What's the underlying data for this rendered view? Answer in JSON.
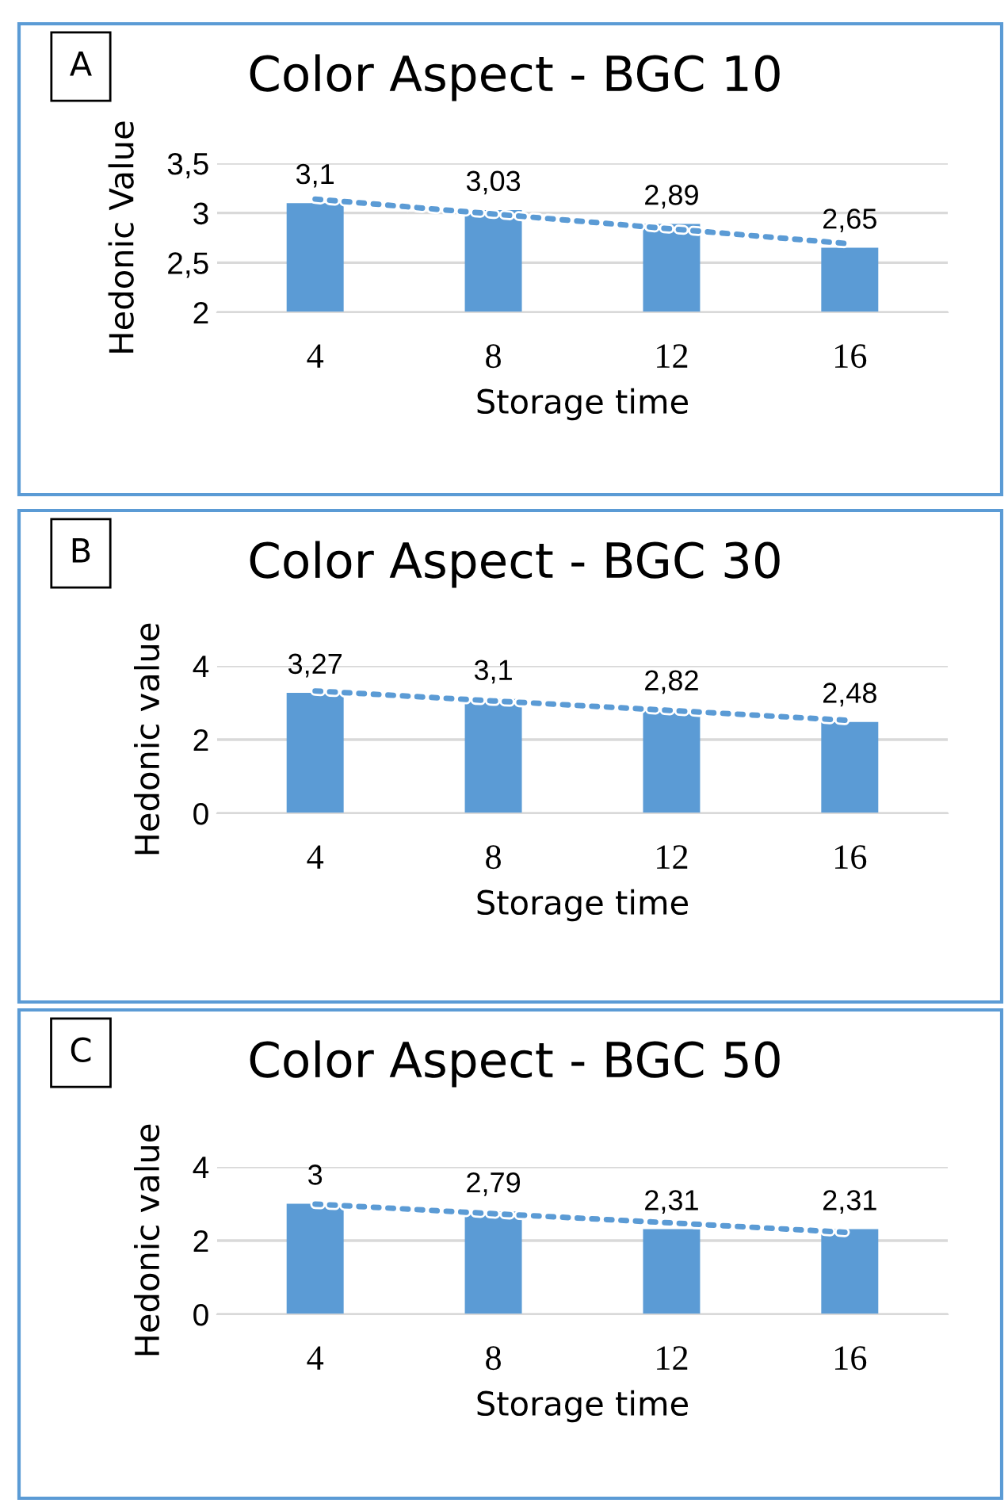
{
  "chart_data": [
    {
      "type": "bar",
      "title": "Color Aspect - BGC 10",
      "xlabel": "Storage time",
      "ylabel": "Hedonic Value",
      "annotations": [
        "A"
      ],
      "categories": [
        "4",
        "8",
        "12",
        "16"
      ],
      "series": [
        {
          "color": "#5b9bd5",
          "values": [
            3.1,
            3.03,
            2.89,
            2.65
          ],
          "value_labels": [
            "3,1",
            "3,03",
            "2,89",
            "2,65"
          ]
        },
        {
          "type": "line",
          "color": "#5b9bd5",
          "line_style": "dotted",
          "marker": "none",
          "x": [
            "4",
            "8",
            "12",
            "16"
          ],
          "values": [
            3.14,
            2.99,
            2.84,
            2.69
          ]
        }
      ],
      "ylim": [
        2,
        3.5
      ],
      "yticks": [
        {
          "value": 2,
          "label": "2"
        },
        {
          "value": 2.5,
          "label": "2,5"
        },
        {
          "value": 3,
          "label": "3"
        },
        {
          "value": 3.5,
          "label": "3,5"
        }
      ],
      "grid": "y",
      "legend": false
    },
    {
      "type": "bar",
      "title": "Color Aspect - BGC 30",
      "xlabel": "Storage time",
      "ylabel": "Hedonic value",
      "annotations": [
        "B"
      ],
      "categories": [
        "4",
        "8",
        "12",
        "16"
      ],
      "series": [
        {
          "color": "#5b9bd5",
          "values": [
            3.27,
            3.1,
            2.82,
            2.48
          ],
          "value_labels": [
            "3,27",
            "3,1",
            "2,82",
            "2,48"
          ]
        },
        {
          "type": "line",
          "color": "#5b9bd5",
          "line_style": "dotted",
          "marker": "none",
          "x": [
            "4",
            "8",
            "12",
            "16"
          ],
          "values": [
            3.32,
            3.05,
            2.79,
            2.52
          ]
        }
      ],
      "ylim": [
        0,
        4
      ],
      "yticks": [
        0,
        2,
        4
      ],
      "grid": "y",
      "legend": false
    },
    {
      "type": "bar",
      "title": "Color Aspect - BGC 50",
      "xlabel": "Storage time",
      "ylabel": "Hedonic value",
      "annotations": [
        "C"
      ],
      "categories": [
        "4",
        "8",
        "12",
        "16"
      ],
      "series": [
        {
          "color": "#5b9bd5",
          "values": [
            3,
            2.79,
            2.31,
            2.31
          ],
          "value_labels": [
            "3",
            "2,79",
            "2,31",
            "2,31"
          ]
        },
        {
          "type": "line",
          "color": "#5b9bd5",
          "line_style": "dotted",
          "marker": "none",
          "x": [
            "4",
            "8",
            "12",
            "16"
          ],
          "values": [
            2.99,
            2.73,
            2.48,
            2.22
          ]
        }
      ],
      "ylim": [
        0,
        4
      ],
      "yticks": [
        0,
        2,
        4
      ],
      "grid": "y",
      "legend": false
    }
  ]
}
